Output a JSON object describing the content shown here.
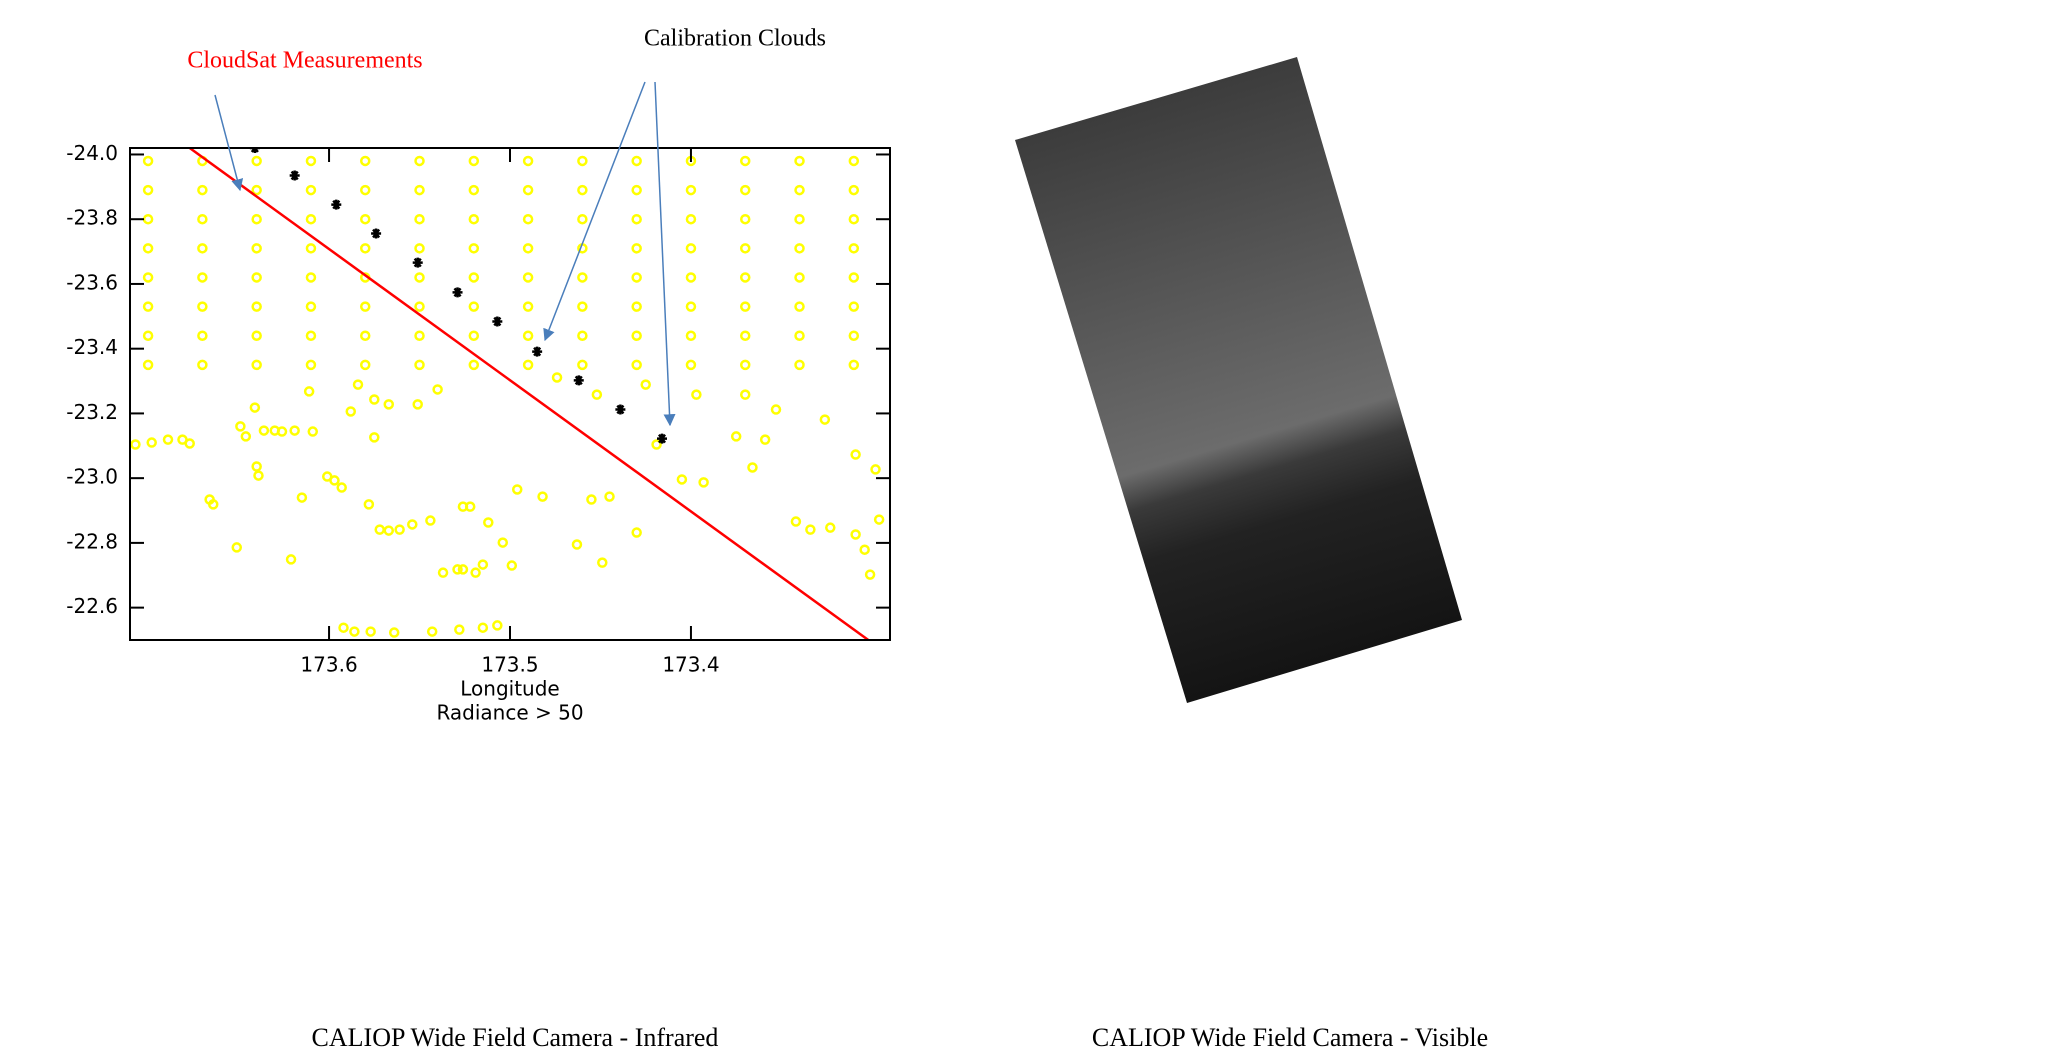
{
  "chart_data": {
    "type": "scatter",
    "xlabel": "Longitude",
    "subtitle": "Radiance > 50",
    "xlim": [
      173.71,
      173.29
    ],
    "ylim": [
      -22.5,
      -24.02
    ],
    "xticks": [
      173.6,
      173.5,
      173.4
    ],
    "yticks": [
      {
        "value": -24,
        "label": "-24.0"
      },
      -23.8,
      -23.6,
      -23.4,
      -23.2,
      {
        "value": -23,
        "label": "-23.0"
      },
      -22.8,
      -22.6
    ],
    "annotations": [
      {
        "text": "CloudSat Measurements",
        "color": "#ff0000"
      },
      {
        "text": "Calibration Clouds",
        "color": "#000000"
      }
    ],
    "series": [
      {
        "color": "#ffff00",
        "marker": "circle",
        "x": [
          173.7,
          173.67,
          173.64,
          173.61,
          173.58,
          173.55,
          173.52,
          173.49,
          173.46,
          173.43,
          173.4,
          173.37,
          173.34,
          173.31,
          173.7,
          173.67,
          173.64,
          173.61,
          173.58,
          173.55,
          173.52,
          173.49,
          173.46,
          173.43,
          173.4,
          173.37,
          173.34,
          173.31,
          173.7,
          173.67,
          173.64,
          173.61,
          173.58,
          173.55,
          173.52,
          173.49,
          173.46,
          173.43,
          173.4,
          173.37,
          173.34,
          173.31,
          173.7,
          173.67,
          173.64,
          173.61,
          173.58,
          173.55,
          173.52,
          173.49,
          173.46,
          173.43,
          173.4,
          173.37,
          173.34,
          173.31,
          173.7,
          173.67,
          173.64,
          173.61,
          173.58,
          173.55,
          173.52,
          173.49,
          173.46,
          173.43,
          173.4,
          173.37,
          173.34,
          173.31,
          173.7,
          173.67,
          173.64,
          173.61,
          173.58,
          173.55,
          173.52,
          173.49,
          173.46,
          173.43,
          173.4,
          173.37,
          173.34,
          173.31,
          173.7,
          173.67,
          173.64,
          173.61,
          173.58,
          173.55,
          173.52,
          173.49,
          173.46,
          173.43,
          173.4,
          173.37,
          173.34,
          173.31,
          173.7,
          173.67,
          173.64,
          173.61,
          173.58,
          173.55,
          173.52,
          173.49,
          173.46,
          173.43,
          173.4,
          173.37,
          173.34,
          173.31
        ],
        "values": [
          -23.98,
          -23.98,
          -23.98,
          -23.98,
          -23.98,
          -23.98,
          -23.98,
          -23.98,
          -23.98,
          -23.98,
          -23.98,
          -23.98,
          -23.98,
          -23.98,
          -23.89,
          -23.89,
          -23.89,
          -23.89,
          -23.89,
          -23.89,
          -23.89,
          -23.89,
          -23.89,
          -23.89,
          -23.89,
          -23.89,
          -23.89,
          -23.89,
          -23.8,
          -23.8,
          -23.8,
          -23.8,
          -23.8,
          -23.8,
          -23.8,
          -23.8,
          -23.8,
          -23.8,
          -23.8,
          -23.8,
          -23.8,
          -23.8,
          -23.71,
          -23.71,
          -23.71,
          -23.71,
          -23.71,
          -23.71,
          -23.71,
          -23.71,
          -23.71,
          -23.71,
          -23.71,
          -23.71,
          -23.71,
          -23.71,
          -23.62,
          -23.62,
          -23.62,
          -23.62,
          -23.62,
          -23.62,
          -23.62,
          -23.62,
          -23.62,
          -23.62,
          -23.62,
          -23.62,
          -23.62,
          -23.62,
          -23.53,
          -23.53,
          -23.53,
          -23.53,
          -23.53,
          -23.53,
          -23.53,
          -23.53,
          -23.53,
          -23.53,
          -23.53,
          -23.53,
          -23.53,
          -23.53,
          -23.44,
          -23.44,
          -23.44,
          -23.44,
          -23.44,
          -23.44,
          -23.44,
          -23.44,
          -23.44,
          -23.44,
          -23.44,
          -23.44,
          -23.44,
          -23.44,
          -23.35,
          -23.35,
          -23.35,
          -23.35,
          -23.35,
          -23.35,
          -23.35,
          -23.35,
          -23.35,
          -23.35,
          -23.35,
          -23.35,
          -23.35,
          -23.35
        ]
      },
      {
        "color": "#ffff00",
        "marker": "circle",
        "x": [
          173.707,
          173.698,
          173.689,
          173.681,
          173.677,
          173.666,
          173.664,
          173.651,
          173.649,
          173.646,
          173.641,
          173.64,
          173.639,
          173.636,
          173.63,
          173.626,
          173.621,
          173.619,
          173.615,
          173.611,
          173.609,
          173.601,
          173.597,
          173.593,
          173.588,
          173.584,
          173.578,
          173.575,
          173.572,
          173.567,
          173.561,
          173.554,
          173.544,
          173.537,
          173.529,
          173.526,
          173.519,
          173.515,
          173.526,
          173.522,
          173.512,
          173.504,
          173.499,
          173.496,
          173.482,
          173.463,
          173.455,
          173.449,
          173.445,
          173.43,
          173.419,
          173.405,
          173.393,
          173.375,
          173.366,
          173.359,
          173.342,
          173.334,
          173.323,
          173.309,
          173.304,
          173.301,
          173.309,
          173.298,
          173.296,
          173.592,
          173.586,
          173.577,
          173.564,
          173.543,
          173.528,
          173.515,
          173.507,
          173.575,
          173.567,
          173.551,
          173.54,
          173.474,
          173.452,
          173.425,
          173.397,
          173.37,
          173.353,
          173.326
        ],
        "values": [
          -23.104,
          -23.11,
          -23.119,
          -23.119,
          -23.107,
          -22.934,
          -22.919,
          -22.786,
          -23.16,
          -23.129,
          -23.218,
          -23.036,
          -23.008,
          -23.147,
          -23.147,
          -23.144,
          -22.749,
          -23.147,
          -22.94,
          -23.268,
          -23.144,
          -23.005,
          -22.993,
          -22.971,
          -23.206,
          -23.289,
          -22.919,
          -23.126,
          -22.841,
          -22.838,
          -22.841,
          -22.857,
          -22.869,
          -22.708,
          -22.718,
          -22.718,
          -22.708,
          -22.733,
          -22.912,
          -22.912,
          -22.863,
          -22.801,
          -22.73,
          -22.965,
          -22.943,
          -22.795,
          -22.934,
          -22.739,
          -22.943,
          -22.832,
          -23.104,
          -22.996,
          -22.987,
          -23.129,
          -23.033,
          -23.119,
          -22.866,
          -22.841,
          -22.847,
          -22.826,
          -22.779,
          -22.702,
          -23.073,
          -23.027,
          -22.872,
          -22.538,
          -22.526,
          -22.526,
          -22.523,
          -22.526,
          -22.532,
          -22.538,
          -22.545,
          -23.243,
          -23.228,
          -23.228,
          -23.274,
          -23.311,
          -23.258,
          -23.289,
          -23.258,
          -23.258,
          -23.212,
          -23.181
        ]
      },
      {
        "color": "#000000",
        "marker": "asterisk",
        "x": [
          173.641,
          173.619,
          173.596,
          173.574,
          173.551,
          173.529,
          173.507,
          173.485,
          173.462,
          173.439,
          173.416
        ],
        "values": [
          -24.02,
          -23.935,
          -23.845,
          -23.756,
          -23.666,
          -23.574,
          -23.484,
          -23.391,
          -23.302,
          -23.212,
          -23.122
        ]
      },
      {
        "color": "#ff0000",
        "marker": "line",
        "x": [
          173.677,
          173.302
        ],
        "values": [
          -24.02,
          -22.5
        ]
      }
    ]
  },
  "captions": [
    "CALIOP Wide Field Camera - Infrared",
    "CALIOP Wide Field Camera - Visible"
  ]
}
